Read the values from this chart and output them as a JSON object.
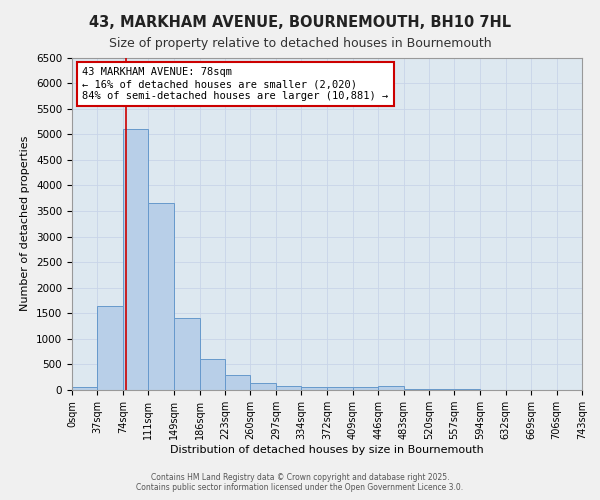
{
  "title": "43, MARKHAM AVENUE, BOURNEMOUTH, BH10 7HL",
  "subtitle": "Size of property relative to detached houses in Bournemouth",
  "xlabel": "Distribution of detached houses by size in Bournemouth",
  "ylabel": "Number of detached properties",
  "bar_color": "#b8cfe8",
  "bar_edge_color": "#6699cc",
  "bin_width": 37,
  "bins_left": [
    0,
    37,
    74,
    111,
    149,
    186,
    223,
    260,
    297,
    334,
    372,
    409,
    446,
    483,
    520,
    557,
    594,
    632,
    669,
    706
  ],
  "bar_heights": [
    50,
    1650,
    5100,
    3650,
    1400,
    600,
    300,
    140,
    80,
    60,
    50,
    50,
    80,
    20,
    15,
    10,
    5,
    3,
    2,
    1
  ],
  "xlim": [
    0,
    743
  ],
  "ylim": [
    0,
    6500
  ],
  "yticks": [
    0,
    500,
    1000,
    1500,
    2000,
    2500,
    3000,
    3500,
    4000,
    4500,
    5000,
    5500,
    6000,
    6500
  ],
  "xtick_labels": [
    "0sqm",
    "37sqm",
    "74sqm",
    "111sqm",
    "149sqm",
    "186sqm",
    "223sqm",
    "260sqm",
    "297sqm",
    "334sqm",
    "372sqm",
    "409sqm",
    "446sqm",
    "483sqm",
    "520sqm",
    "557sqm",
    "594sqm",
    "632sqm",
    "669sqm",
    "706sqm",
    "743sqm"
  ],
  "xtick_positions": [
    0,
    37,
    74,
    111,
    149,
    186,
    223,
    260,
    297,
    334,
    372,
    409,
    446,
    483,
    520,
    557,
    594,
    632,
    669,
    706,
    743
  ],
  "property_size": 78,
  "red_line_color": "#cc0000",
  "annotation_line1": "43 MARKHAM AVENUE: 78sqm",
  "annotation_line2": "← 16% of detached houses are smaller (2,020)",
  "annotation_line3": "84% of semi-detached houses are larger (10,881) →",
  "annotation_box_color": "#ffffff",
  "annotation_border_color": "#cc0000",
  "annotation_fontsize": 7.5,
  "title_fontsize": 10.5,
  "subtitle_fontsize": 9,
  "footer_line1": "Contains HM Land Registry data © Crown copyright and database right 2025.",
  "footer_line2": "Contains public sector information licensed under the Open Government Licence 3.0.",
  "grid_color": "#c8d4e8",
  "bg_color": "#dde8f0",
  "fig_bg_color": "#f0f0f0"
}
